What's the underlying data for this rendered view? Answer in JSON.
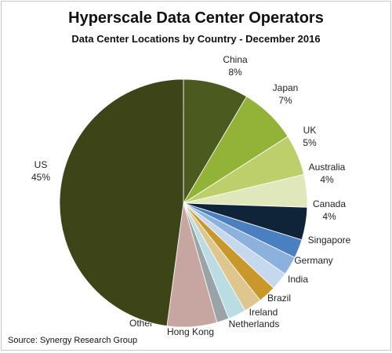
{
  "chart_data": {
    "type": "pie",
    "title": "Hyperscale Data Center Operators",
    "subtitle": "Data Center Locations by Country - December 2016",
    "source": "Source: Synergy Research Group",
    "slices": [
      {
        "label": "China",
        "value_label": "8%",
        "value": 8,
        "color": "#4b5a1f"
      },
      {
        "label": "Japan",
        "value_label": "7%",
        "value": 7,
        "color": "#93b238"
      },
      {
        "label": "UK",
        "value_label": "5%",
        "value": 5,
        "color": "#bccf6b"
      },
      {
        "label": "Australia",
        "value_label": "4%",
        "value": 4,
        "color": "#e0e8bb"
      },
      {
        "label": "Canada",
        "value_label": "4%",
        "value": 4,
        "color": "#0f2438"
      },
      {
        "label": "Singapore",
        "value_label": "",
        "value": 2.3,
        "color": "#4a7fc1"
      },
      {
        "label": "Germany",
        "value_label": "",
        "value": 2.3,
        "color": "#8db1dd"
      },
      {
        "label": "India",
        "value_label": "",
        "value": 2.2,
        "color": "#c5d8ee"
      },
      {
        "label": "Brazil",
        "value_label": "",
        "value": 2.2,
        "color": "#c8982a"
      },
      {
        "label": "Ireland",
        "value_label": "",
        "value": 2.2,
        "color": "#dfc58e"
      },
      {
        "label": "Netherlands",
        "value_label": "",
        "value": 2.2,
        "color": "#b9dde2"
      },
      {
        "label": "Hong Kong",
        "value_label": "",
        "value": 1.5,
        "color": "#9aa3a5"
      },
      {
        "label": "Other",
        "value_label": "",
        "value": 6.1,
        "color": "#c7a5a1"
      },
      {
        "label": "US",
        "value_label": "45%",
        "value": 45,
        "color": "#3d4417"
      }
    ],
    "legend": "none"
  }
}
